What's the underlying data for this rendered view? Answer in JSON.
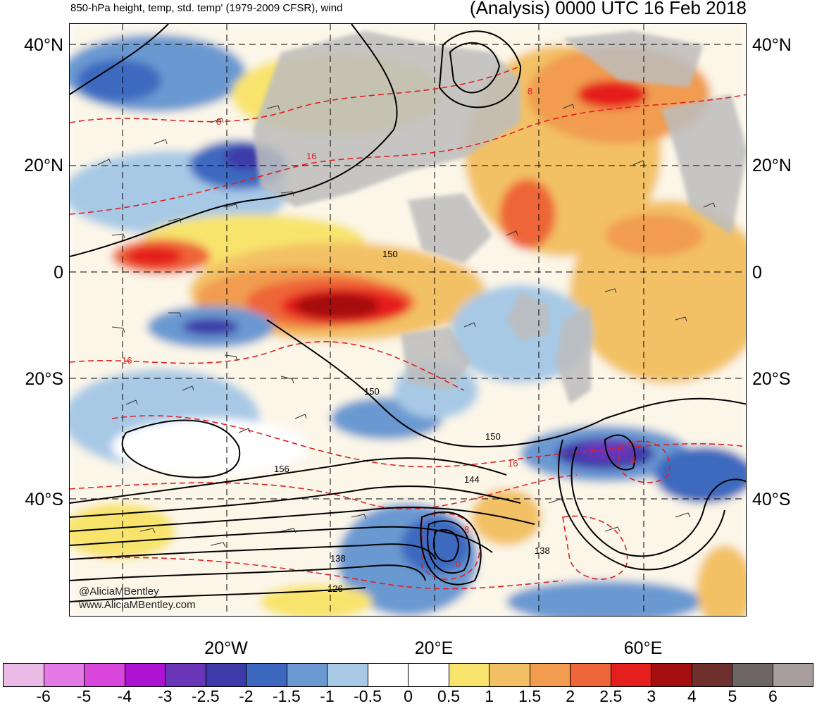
{
  "header": {
    "left_title": "850-hPa height, temp, std. temp' (1979-2009 CFSR), wind",
    "right_title": "(Analysis) 0000 UTC 16 Feb 2018"
  },
  "axes": {
    "lat_labels": [
      "40°N",
      "20°N",
      "0",
      "20°S",
      "40°S"
    ],
    "lon_labels": [
      "20°W",
      "20°E",
      "60°E"
    ]
  },
  "contour_labels": {
    "height": [
      "150",
      "150",
      "150",
      "156",
      "144",
      "138",
      "138",
      "126"
    ],
    "temperature": [
      "8",
      "16",
      "16",
      "16",
      "8",
      "8",
      "0",
      "8"
    ]
  },
  "credits": {
    "twitter": "@AliciaMBentley",
    "website": "www.AliciaMBentley.com"
  },
  "colorbar": {
    "colors": [
      "#ebbbe8",
      "#e47ae6",
      "#d846dc",
      "#ac13d2",
      "#6a36b8",
      "#3d3aa9",
      "#3c69bf",
      "#6b99d1",
      "#a7c9e6",
      "#ffffff",
      "#ffffff",
      "#f8e46d",
      "#f3c165",
      "#f19c4f",
      "#ee6539",
      "#e51e1e",
      "#a50f0f",
      "#6f2f2d",
      "#6e6565",
      "#a99e9e"
    ],
    "labels": [
      "-6",
      "-5",
      "-4",
      "-3",
      "-2.5",
      "-2",
      "-1.5",
      "-1",
      "-0.5",
      "0",
      "0.5",
      "1",
      "1.5",
      "2",
      "2.5",
      "3",
      "4",
      "5",
      "6"
    ]
  }
}
